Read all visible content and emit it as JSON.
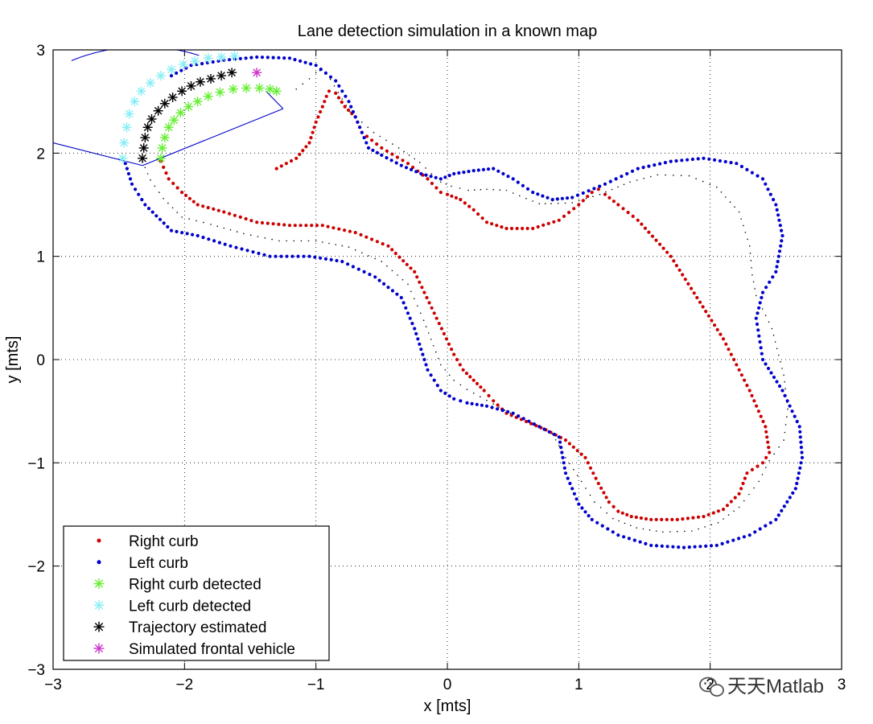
{
  "chart_data": {
    "type": "scatter",
    "title": "Lane detection simulation in a known map",
    "xlabel": "x [mts]",
    "ylabel": "y [mts]",
    "xlim": [
      -3,
      3
    ],
    "ylim": [
      -3,
      3
    ],
    "xticks": [
      -3,
      -2,
      -1,
      0,
      1,
      2,
      3
    ],
    "yticks": [
      -3,
      -2,
      -1,
      0,
      1,
      2,
      3
    ],
    "xtick_labels": [
      "−3",
      "−2",
      "−1",
      "0",
      "1",
      "2",
      "3"
    ],
    "ytick_labels": [
      "−3",
      "−2",
      "−1",
      "0",
      "1",
      "2",
      "3"
    ],
    "grid": true,
    "legend_position": "bottom-left",
    "series": [
      {
        "name": "Right curb",
        "marker": "dot",
        "color": "#cc0000",
        "x": [
          -2.18,
          -2.12,
          -2.02,
          -1.9,
          -1.7,
          -1.45,
          -1.2,
          -0.95,
          -0.7,
          -0.45,
          -0.25,
          -0.1,
          0.05,
          0.12,
          0.2,
          0.28,
          0.35,
          0.45,
          0.6,
          0.75,
          0.9,
          1.05,
          1.15,
          1.23,
          1.3,
          1.4,
          1.55,
          1.75,
          1.95,
          2.1,
          2.22,
          2.28,
          2.4,
          2.45,
          2.42,
          2.3,
          2.1,
          1.9,
          1.7,
          1.45,
          1.3,
          1.2,
          1.15,
          1.1,
          1.0,
          0.85,
          0.65,
          0.45,
          0.3,
          0.2,
          0.1,
          0.0,
          -0.05,
          -0.15,
          -0.3,
          -0.5,
          -0.65,
          -0.7,
          -0.78,
          -0.85,
          -0.9,
          -0.92,
          -0.95,
          -1.0,
          -1.05,
          -1.15,
          -1.3
        ],
        "y": [
          1.92,
          1.75,
          1.62,
          1.5,
          1.43,
          1.33,
          1.3,
          1.3,
          1.23,
          1.1,
          0.85,
          0.45,
          0.05,
          -0.1,
          -0.2,
          -0.3,
          -0.4,
          -0.52,
          -0.6,
          -0.68,
          -0.78,
          -0.95,
          -1.2,
          -1.38,
          -1.47,
          -1.52,
          -1.55,
          -1.55,
          -1.52,
          -1.45,
          -1.3,
          -1.1,
          -1.0,
          -0.9,
          -0.65,
          -0.3,
          0.2,
          0.6,
          1.0,
          1.35,
          1.5,
          1.6,
          1.65,
          1.62,
          1.5,
          1.35,
          1.27,
          1.27,
          1.33,
          1.45,
          1.55,
          1.6,
          1.62,
          1.75,
          1.9,
          2.05,
          2.2,
          2.35,
          2.45,
          2.58,
          2.6,
          2.55,
          2.45,
          2.3,
          2.1,
          1.95,
          1.85
        ]
      },
      {
        "name": "Left curb",
        "marker": "dot",
        "color": "#0000cc",
        "x": [
          -2.45,
          -2.4,
          -2.3,
          -2.1,
          -1.9,
          -1.65,
          -1.35,
          -1.05,
          -0.8,
          -0.55,
          -0.35,
          -0.25,
          -0.15,
          -0.05,
          0.05,
          0.15,
          0.3,
          0.5,
          0.7,
          0.85,
          0.9,
          1.0,
          1.1,
          1.3,
          1.55,
          1.8,
          2.05,
          2.3,
          2.5,
          2.65,
          2.7,
          2.68,
          2.55,
          2.4,
          2.35,
          2.4,
          2.5,
          2.55,
          2.5,
          2.4,
          2.2,
          1.95,
          1.7,
          1.45,
          1.2,
          0.95,
          0.8,
          0.65,
          0.5,
          0.35,
          0.2,
          0.05,
          -0.05,
          -0.2,
          -0.35,
          -0.5,
          -0.6,
          -0.65,
          -0.7,
          -0.75,
          -0.85,
          -1.0,
          -1.2,
          -1.45,
          -1.7,
          -1.95,
          -2.1
        ],
        "y": [
          1.9,
          1.7,
          1.5,
          1.25,
          1.2,
          1.1,
          1.0,
          1.0,
          0.95,
          0.8,
          0.6,
          0.3,
          -0.1,
          -0.3,
          -0.38,
          -0.42,
          -0.45,
          -0.52,
          -0.65,
          -0.75,
          -1.1,
          -1.4,
          -1.55,
          -1.7,
          -1.8,
          -1.82,
          -1.8,
          -1.7,
          -1.55,
          -1.25,
          -0.95,
          -0.65,
          -0.3,
          0.0,
          0.4,
          0.65,
          0.85,
          1.2,
          1.5,
          1.75,
          1.9,
          1.95,
          1.92,
          1.85,
          1.7,
          1.57,
          1.55,
          1.62,
          1.75,
          1.85,
          1.83,
          1.8,
          1.75,
          1.8,
          1.88,
          1.98,
          2.05,
          2.2,
          2.35,
          2.5,
          2.7,
          2.85,
          2.92,
          2.93,
          2.9,
          2.85,
          2.75
        ]
      },
      {
        "name": "Right curb detected",
        "marker": "star",
        "color": "#66ee33",
        "x": [
          -2.18,
          -2.17,
          -2.15,
          -2.12,
          -2.08,
          -2.03,
          -1.97,
          -1.9,
          -1.82,
          -1.73,
          -1.63,
          -1.53,
          -1.43,
          -1.35,
          -1.3
        ],
        "y": [
          1.95,
          2.05,
          2.15,
          2.25,
          2.32,
          2.39,
          2.45,
          2.5,
          2.55,
          2.59,
          2.62,
          2.63,
          2.63,
          2.62,
          2.6
        ]
      },
      {
        "name": "Left curb detected",
        "marker": "star",
        "color": "#88eef5",
        "x": [
          -2.47,
          -2.46,
          -2.44,
          -2.42,
          -2.38,
          -2.33,
          -2.26,
          -2.18,
          -2.1,
          -2.01,
          -1.92,
          -1.82,
          -1.72,
          -1.62
        ],
        "y": [
          1.95,
          2.1,
          2.25,
          2.38,
          2.5,
          2.6,
          2.68,
          2.75,
          2.81,
          2.86,
          2.89,
          2.92,
          2.93,
          2.94
        ]
      },
      {
        "name": "Trajectory estimated",
        "marker": "star",
        "color": "#000000",
        "x": [
          -2.32,
          -2.31,
          -2.3,
          -2.28,
          -2.25,
          -2.2,
          -2.15,
          -2.09,
          -2.02,
          -1.95,
          -1.88,
          -1.8,
          -1.72,
          -1.64
        ],
        "y": [
          1.95,
          2.05,
          2.15,
          2.25,
          2.33,
          2.41,
          2.48,
          2.54,
          2.6,
          2.65,
          2.69,
          2.72,
          2.75,
          2.78
        ]
      },
      {
        "name": "Simulated frontal vehicle",
        "marker": "star",
        "color": "#cc33cc",
        "x": [
          -1.45
        ],
        "y": [
          2.78
        ]
      }
    ],
    "annotations": [
      {
        "kind": "centerline",
        "style": "dotted",
        "color": "#000000",
        "x": [
          -2.32,
          -2.26,
          -2.16,
          -2.02,
          -1.8,
          -1.55,
          -1.28,
          -1.0,
          -0.75,
          -0.5,
          -0.3,
          -0.18,
          -0.05,
          0.05,
          0.15,
          0.25,
          0.35,
          0.48,
          0.65,
          0.8,
          0.9,
          1.02,
          1.12,
          1.26,
          1.44,
          1.64,
          1.86,
          2.06,
          2.22,
          2.37,
          2.45,
          2.56,
          2.59,
          2.56,
          2.47,
          2.35,
          2.32,
          2.3,
          2.22,
          2.05,
          1.84,
          1.6,
          1.39,
          1.16,
          0.95,
          0.79,
          0.7,
          0.6,
          0.45,
          0.3,
          0.16,
          0.03,
          -0.05,
          -0.12,
          -0.21,
          -0.37,
          -0.56,
          -0.74,
          -0.86,
          -0.92,
          -0.97,
          -1.0,
          -1.05,
          -1.15
        ],
        "y": [
          1.92,
          1.74,
          1.56,
          1.38,
          1.31,
          1.22,
          1.15,
          1.15,
          1.09,
          0.95,
          0.73,
          0.38,
          -0.05,
          -0.2,
          -0.29,
          -0.36,
          -0.43,
          -0.52,
          -0.63,
          -0.72,
          -0.95,
          -1.18,
          -1.38,
          -1.54,
          -1.63,
          -1.67,
          -1.66,
          -1.58,
          -1.43,
          -1.18,
          -0.98,
          -0.78,
          -0.48,
          -0.15,
          0.3,
          0.62,
          0.82,
          1.1,
          1.43,
          1.67,
          1.78,
          1.79,
          1.72,
          1.6,
          1.52,
          1.51,
          1.51,
          1.56,
          1.64,
          1.65,
          1.64,
          1.68,
          1.72,
          1.8,
          1.91,
          2.05,
          2.2,
          2.4,
          2.65,
          2.78,
          2.8,
          2.78,
          2.72,
          2.62
        ]
      },
      {
        "kind": "sensor-field-of-view",
        "style": "solid",
        "color": "#0000cc",
        "apex": [
          -2.32,
          1.88
        ],
        "edges": [
          {
            "x": [
              -2.32,
              -3.0
            ],
            "y": [
              1.88,
              2.1
            ]
          },
          {
            "x": [
              -2.32,
              -1.25
            ],
            "y": [
              1.88,
              2.43
            ]
          },
          {
            "x": [
              -1.25,
              -1.38
            ],
            "y": [
              2.43,
              2.6
            ]
          }
        ],
        "arc": {
          "cx": -2.32,
          "cy": 1.88,
          "r": 1.15,
          "from_deg": 68,
          "to_deg": 118
        }
      }
    ]
  },
  "watermark": {
    "text": "天天Matlab",
    "icon": "wechat-icon"
  }
}
